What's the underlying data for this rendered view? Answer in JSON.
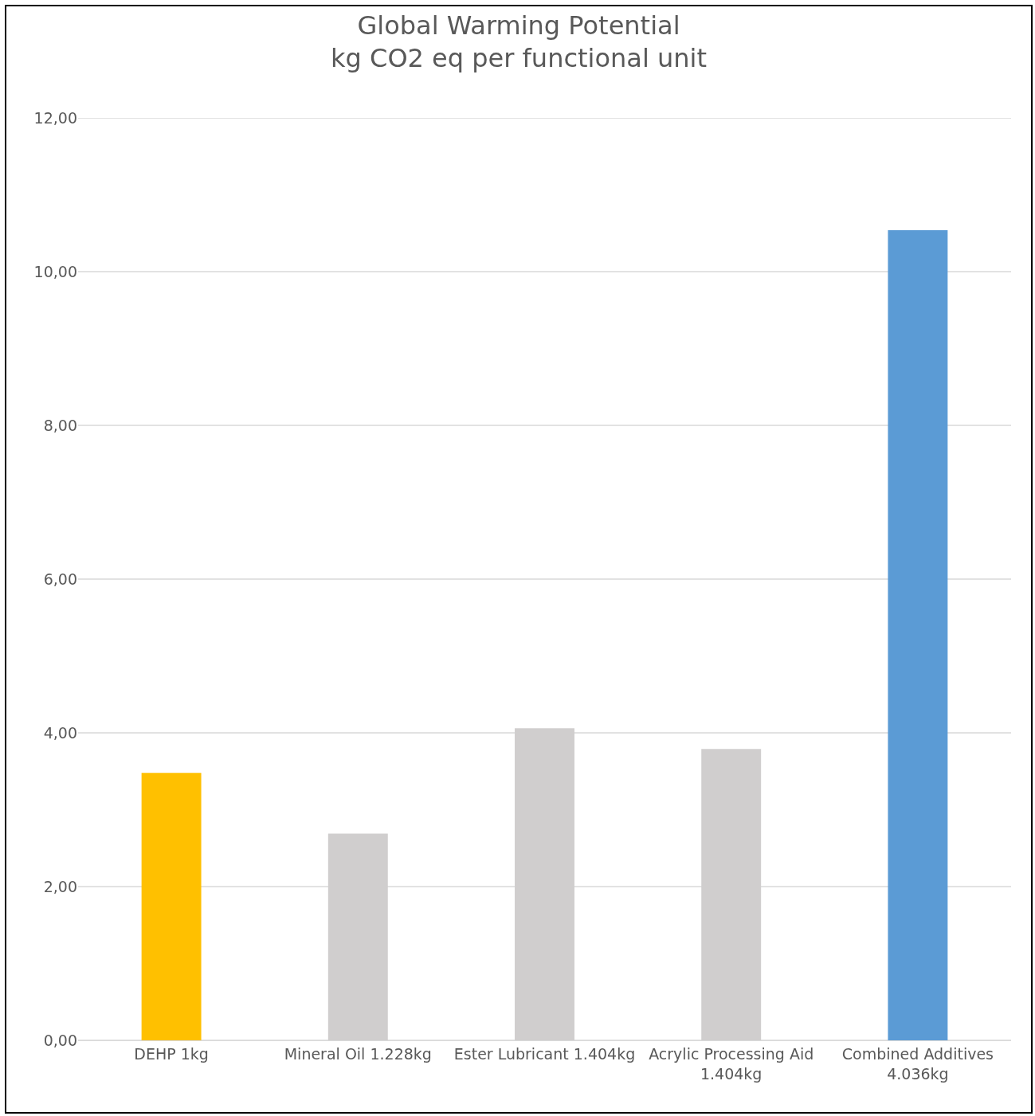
{
  "chart_data": {
    "type": "bar",
    "title": "Global Warming Potential\nkg CO2 eq per functional unit",
    "categories": [
      "DEHP 1kg",
      "Mineral Oil 1.228kg",
      "Ester Lubricant 1.404kg",
      "Acrylic Processing Aid 1.404kg",
      "Combined Additives 4.036kg"
    ],
    "values": [
      3.48,
      2.69,
      4.06,
      3.79,
      10.54
    ],
    "colors": [
      "#ffc000",
      "#d0cece",
      "#d0cece",
      "#d0cece",
      "#5b9bd5"
    ],
    "ylim": [
      0,
      12
    ],
    "yticks": [
      {
        "value": 0,
        "label": "0,00"
      },
      {
        "value": 2,
        "label": "2,00"
      },
      {
        "value": 4,
        "label": "4,00"
      },
      {
        "value": 6,
        "label": "6,00"
      },
      {
        "value": 8,
        "label": "8,00"
      },
      {
        "value": 10,
        "label": "10,00"
      },
      {
        "value": 12,
        "label": "12,00"
      }
    ],
    "grid": "y",
    "legend": false
  }
}
